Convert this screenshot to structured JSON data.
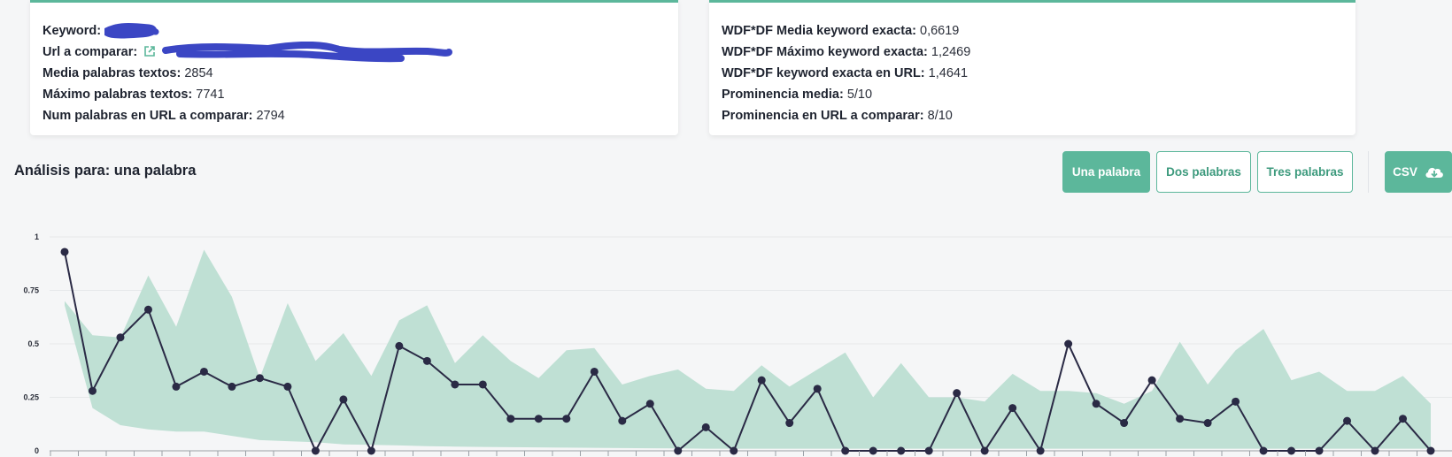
{
  "summary_left": {
    "keyword_label": "Keyword:",
    "url_label": "Url a comparar:",
    "media_palabras_label": "Media palabras textos:",
    "media_palabras_value": "2854",
    "maximo_palabras_label": "Máximo palabras textos:",
    "maximo_palabras_value": "7741",
    "num_palabras_label": "Num palabras en URL a comparar:",
    "num_palabras_value": "2794"
  },
  "summary_right": {
    "wdf_media_label": "WDF*DF Media keyword exacta:",
    "wdf_media_value": "0,6619",
    "wdf_maximo_label": "WDF*DF Máximo keyword exacta:",
    "wdf_maximo_value": "1,2469",
    "wdf_url_label": "WDF*DF keyword exacta en URL:",
    "wdf_url_value": "1,4641",
    "prominencia_media_label": "Prominencia media:",
    "prominencia_media_value": "5/10",
    "prominencia_url_label": "Prominencia en URL a comparar:",
    "prominencia_url_value": "8/10"
  },
  "analysis": {
    "title": "Análisis para: una palabra",
    "buttons": {
      "una": "Una palabra",
      "dos": "Dos palabras",
      "tres": "Tres palabras",
      "csv": "CSV"
    }
  },
  "colors": {
    "accent": "#5cb79b",
    "band_fill": "#bfe0d4",
    "line": "#2a2a45"
  },
  "chart_data": {
    "type": "line",
    "ylim": [
      0,
      1
    ],
    "yticks": [
      "0",
      "0.25",
      "0.5",
      "0.75",
      "1"
    ],
    "band_upper": [
      0.7,
      0.54,
      0.53,
      0.82,
      0.58,
      0.94,
      0.72,
      0.34,
      0.69,
      0.42,
      0.55,
      0.35,
      0.61,
      0.68,
      0.41,
      0.54,
      0.42,
      0.34,
      0.47,
      0.48,
      0.31,
      0.35,
      0.38,
      0.29,
      0.28,
      0.4,
      0.3,
      0.38,
      0.46,
      0.25,
      0.41,
      0.25,
      0.25,
      0.23,
      0.36,
      0.28,
      0.28,
      0.27,
      0.22,
      0.28,
      0.51,
      0.31,
      0.47,
      0.57,
      0.33,
      0.37,
      0.28,
      0.28,
      0.35,
      0.22
    ],
    "band_lower": [
      0.68,
      0.2,
      0.12,
      0.1,
      0.09,
      0.09,
      0.07,
      0.05,
      0.045,
      0.04,
      0.03,
      0.028,
      0.025,
      0.022,
      0.02,
      0.018,
      0.017,
      0.016,
      0.015,
      0.014,
      0.013,
      0.012,
      0.011,
      0.01,
      0.01,
      0.01,
      0.01,
      0.01,
      0.01,
      0.01,
      0.01,
      0.01,
      0.01,
      0.01,
      0.01,
      0.01,
      0.01,
      0.01,
      0.01,
      0.01,
      0.01,
      0.01,
      0.01,
      0.01,
      0.01,
      0.01,
      0.01,
      0.01,
      0.01,
      0.01
    ],
    "line_values": [
      0.93,
      0.28,
      0.53,
      0.66,
      0.3,
      0.37,
      0.3,
      0.34,
      0.3,
      0.0,
      0.24,
      0.0,
      0.49,
      0.42,
      0.31,
      0.31,
      0.15,
      0.15,
      0.15,
      0.37,
      0.14,
      0.22,
      0.0,
      0.11,
      0.0,
      0.33,
      0.13,
      0.29,
      0.0,
      0.0,
      0.0,
      0.0,
      0.27,
      0.0,
      0.2,
      0.0,
      0.5,
      0.22,
      0.13,
      0.33,
      0.15,
      0.13,
      0.23,
      0.0,
      0.0,
      0.0,
      0.14,
      0.0,
      0.15,
      0.0
    ]
  }
}
